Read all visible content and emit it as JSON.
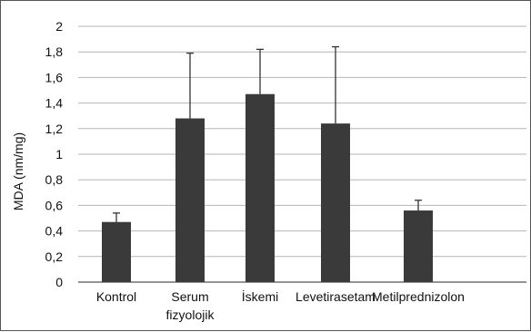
{
  "chart_data": {
    "type": "bar",
    "title": "",
    "xlabel": "",
    "ylabel": "MDA (nm/mg)",
    "ylim": [
      0,
      2
    ],
    "yticks": [
      "0",
      "0,2",
      "0,4",
      "0,6",
      "0,8",
      "1",
      "1,2",
      "1,4",
      "1,6",
      "1,8",
      "2"
    ],
    "categories": [
      [
        "Kontrol"
      ],
      [
        "Serum",
        "fizyolojik"
      ],
      [
        "İskemi"
      ],
      [
        "Levetirasetam"
      ],
      [
        "Metilprednizolon"
      ]
    ],
    "values": [
      0.47,
      1.28,
      1.47,
      1.24,
      0.56
    ],
    "error_upper": [
      0.54,
      1.79,
      1.82,
      1.84,
      0.64
    ],
    "grid": true,
    "legend": "none",
    "colors": {
      "bar": "#3a3a3a",
      "grid": "#b5b5b5",
      "axis": "#555555"
    }
  }
}
